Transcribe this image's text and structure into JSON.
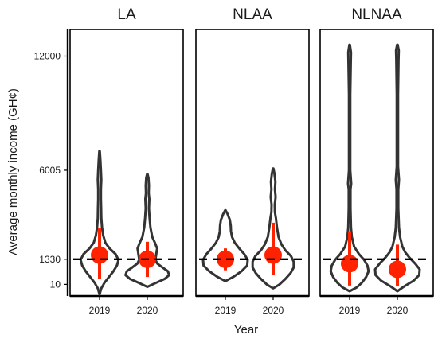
{
  "chart_data": {
    "type": "violin",
    "xlabel": "Year",
    "ylabel": "Average monthly income (GH¢)",
    "y_ticks": [
      10,
      1330,
      6005,
      12000
    ],
    "y_range": [
      -600,
      13400
    ],
    "reference_line": 1330,
    "colors": {
      "violin_outline": "#333333",
      "point": "#ff2200",
      "reference_line": "#000000"
    },
    "panels": [
      {
        "title": "LA",
        "groups": [
          {
            "year": "2019",
            "mean": 1550,
            "ci_low": 300,
            "ci_high": 2950,
            "profile": [
              [
                -520,
                0.0
              ],
              [
                -200,
                0.08
              ],
              [
                100,
                0.22
              ],
              [
                400,
                0.42
              ],
              [
                700,
                0.62
              ],
              [
                1000,
                0.78
              ],
              [
                1300,
                0.85
              ],
              [
                1600,
                0.72
              ],
              [
                1900,
                0.45
              ],
              [
                2200,
                0.26
              ],
              [
                2600,
                0.16
              ],
              [
                3000,
                0.11
              ],
              [
                3500,
                0.08
              ],
              [
                4000,
                0.07
              ],
              [
                4500,
                0.06
              ],
              [
                5000,
                0.06
              ],
              [
                5500,
                0.08
              ],
              [
                6000,
                0.06
              ],
              [
                6500,
                0.04
              ],
              [
                7000,
                0.01
              ]
            ]
          },
          {
            "year": "2020",
            "mean": 1330,
            "ci_low": 400,
            "ci_high": 2250,
            "profile": [
              [
                -120,
                0.0
              ],
              [
                100,
                0.4
              ],
              [
                300,
                0.78
              ],
              [
                500,
                0.98
              ],
              [
                700,
                0.92
              ],
              [
                900,
                0.68
              ],
              [
                1100,
                0.45
              ],
              [
                1300,
                0.36
              ],
              [
                1600,
                0.4
              ],
              [
                1900,
                0.44
              ],
              [
                2200,
                0.34
              ],
              [
                2500,
                0.22
              ],
              [
                3000,
                0.14
              ],
              [
                3500,
                0.1
              ],
              [
                4000,
                0.07
              ],
              [
                4500,
                0.09
              ],
              [
                4800,
                0.06
              ],
              [
                5200,
                0.07
              ],
              [
                5600,
                0.05
              ],
              [
                5800,
                0.01
              ]
            ]
          }
        ]
      },
      {
        "title": "NLAA",
        "groups": [
          {
            "year": "2019",
            "mean": 1330,
            "ci_low": 750,
            "ci_high": 1900,
            "profile": [
              [
                180,
                0.0
              ],
              [
                400,
                0.35
              ],
              [
                700,
                0.72
              ],
              [
                1000,
                0.98
              ],
              [
                1300,
                1.0
              ],
              [
                1600,
                0.85
              ],
              [
                1900,
                0.62
              ],
              [
                2200,
                0.42
              ],
              [
                2500,
                0.3
              ],
              [
                2800,
                0.25
              ],
              [
                3100,
                0.24
              ],
              [
                3400,
                0.2
              ],
              [
                3700,
                0.1
              ],
              [
                3900,
                0.01
              ]
            ]
          },
          {
            "year": "2020",
            "mean": 1550,
            "ci_low": 500,
            "ci_high": 3250,
            "profile": [
              [
                -200,
                0.0
              ],
              [
                0,
                0.28
              ],
              [
                300,
                0.55
              ],
              [
                600,
                0.78
              ],
              [
                900,
                0.92
              ],
              [
                1200,
                0.92
              ],
              [
                1500,
                0.8
              ],
              [
                1800,
                0.55
              ],
              [
                2100,
                0.38
              ],
              [
                2500,
                0.24
              ],
              [
                3000,
                0.17
              ],
              [
                3500,
                0.12
              ],
              [
                3800,
                0.08
              ],
              [
                4200,
                0.07
              ],
              [
                4600,
                0.11
              ],
              [
                5000,
                0.08
              ],
              [
                5400,
                0.1
              ],
              [
                5800,
                0.06
              ],
              [
                6100,
                0.01
              ]
            ]
          }
        ]
      },
      {
        "title": "NLNAA",
        "groups": [
          {
            "year": "2019",
            "mean": 1100,
            "ci_low": -50,
            "ci_high": 2800,
            "profile": [
              [
                -350,
                0.0
              ],
              [
                -150,
                0.32
              ],
              [
                100,
                0.55
              ],
              [
                400,
                0.74
              ],
              [
                700,
                0.85
              ],
              [
                1000,
                0.8
              ],
              [
                1300,
                0.65
              ],
              [
                1600,
                0.42
              ],
              [
                2000,
                0.2
              ],
              [
                2500,
                0.1
              ],
              [
                3000,
                0.06
              ],
              [
                4000,
                0.04
              ],
              [
                5000,
                0.04
              ],
              [
                5300,
                0.07
              ],
              [
                6000,
                0.03
              ],
              [
                8000,
                0.03
              ],
              [
                10000,
                0.03
              ],
              [
                11500,
                0.05
              ],
              [
                12200,
                0.06
              ],
              [
                12600,
                0.01
              ]
            ]
          },
          {
            "year": "2020",
            "mean": 800,
            "ci_low": -100,
            "ci_high": 2100,
            "profile": [
              [
                -350,
                0.0
              ],
              [
                -100,
                0.3
              ],
              [
                200,
                0.72
              ],
              [
                500,
                0.98
              ],
              [
                800,
                1.0
              ],
              [
                1100,
                0.8
              ],
              [
                1400,
                0.55
              ],
              [
                1700,
                0.35
              ],
              [
                2000,
                0.22
              ],
              [
                2500,
                0.12
              ],
              [
                3000,
                0.07
              ],
              [
                4000,
                0.04
              ],
              [
                5000,
                0.04
              ],
              [
                5500,
                0.07
              ],
              [
                6200,
                0.03
              ],
              [
                8000,
                0.03
              ],
              [
                10000,
                0.03
              ],
              [
                11800,
                0.05
              ],
              [
                12300,
                0.06
              ],
              [
                12600,
                0.01
              ]
            ]
          }
        ]
      }
    ]
  }
}
